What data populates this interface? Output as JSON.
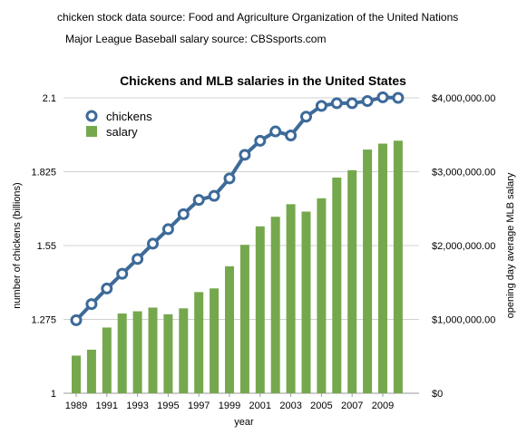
{
  "sources": {
    "chickens": "chicken stock data source: Food and Agriculture Organization of the United Nations",
    "salary": "Major League Baseball salary source: CBSsports.com"
  },
  "chart_data": {
    "type": "bar+line",
    "title": "Chickens and MLB salaries in the United States",
    "xlabel": "year",
    "ylabel_left": "number of chickens (billions)",
    "ylabel_right": "opening day average MLB salary",
    "years": [
      1989,
      1990,
      1991,
      1992,
      1993,
      1994,
      1995,
      1996,
      1997,
      1998,
      1999,
      2000,
      2001,
      2002,
      2003,
      2004,
      2005,
      2006,
      2007,
      2008,
      2009,
      2010
    ],
    "x_tick_labels": [
      "1989",
      "1991",
      "1993",
      "1995",
      "1997",
      "1999",
      "2001",
      "2003",
      "2005",
      "2007",
      "2009"
    ],
    "left_axis": {
      "ylim": [
        1,
        2.1
      ],
      "ticks": [
        1,
        1.275,
        1.55,
        1.825,
        2.1
      ],
      "tick_labels": [
        "1",
        "1.275",
        "1.55",
        "1.825",
        "2.1"
      ]
    },
    "right_axis": {
      "ylim": [
        0,
        4000000
      ],
      "ticks": [
        0,
        1000000,
        2000000,
        3000000,
        4000000
      ],
      "tick_labels": [
        "$0",
        "$1,000,000.00",
        "$2,000,000.00",
        "$3,000,000.00",
        "$4,000,000.00"
      ]
    },
    "series": [
      {
        "name": "chickens",
        "type": "line",
        "axis": "left",
        "color": "#3d6a99",
        "values": [
          1.272,
          1.332,
          1.39,
          1.445,
          1.5,
          1.557,
          1.611,
          1.667,
          1.72,
          1.735,
          1.8,
          1.888,
          1.94,
          1.975,
          1.96,
          2.03,
          2.07,
          2.08,
          2.08,
          2.088,
          2.102,
          2.1
        ]
      },
      {
        "name": "salary",
        "type": "bar",
        "axis": "right",
        "color": "#75a84d",
        "values": [
          510000,
          590000,
          890000,
          1080000,
          1110000,
          1160000,
          1070000,
          1150000,
          1370000,
          1420000,
          1720000,
          2010000,
          2260000,
          2390000,
          2560000,
          2460000,
          2640000,
          2920000,
          3020000,
          3300000,
          3380000,
          3420000
        ]
      }
    ],
    "legend": {
      "position": "top-left",
      "entries": [
        "chickens",
        "salary"
      ]
    },
    "grid": {
      "horizontal": true,
      "vertical": false
    }
  }
}
